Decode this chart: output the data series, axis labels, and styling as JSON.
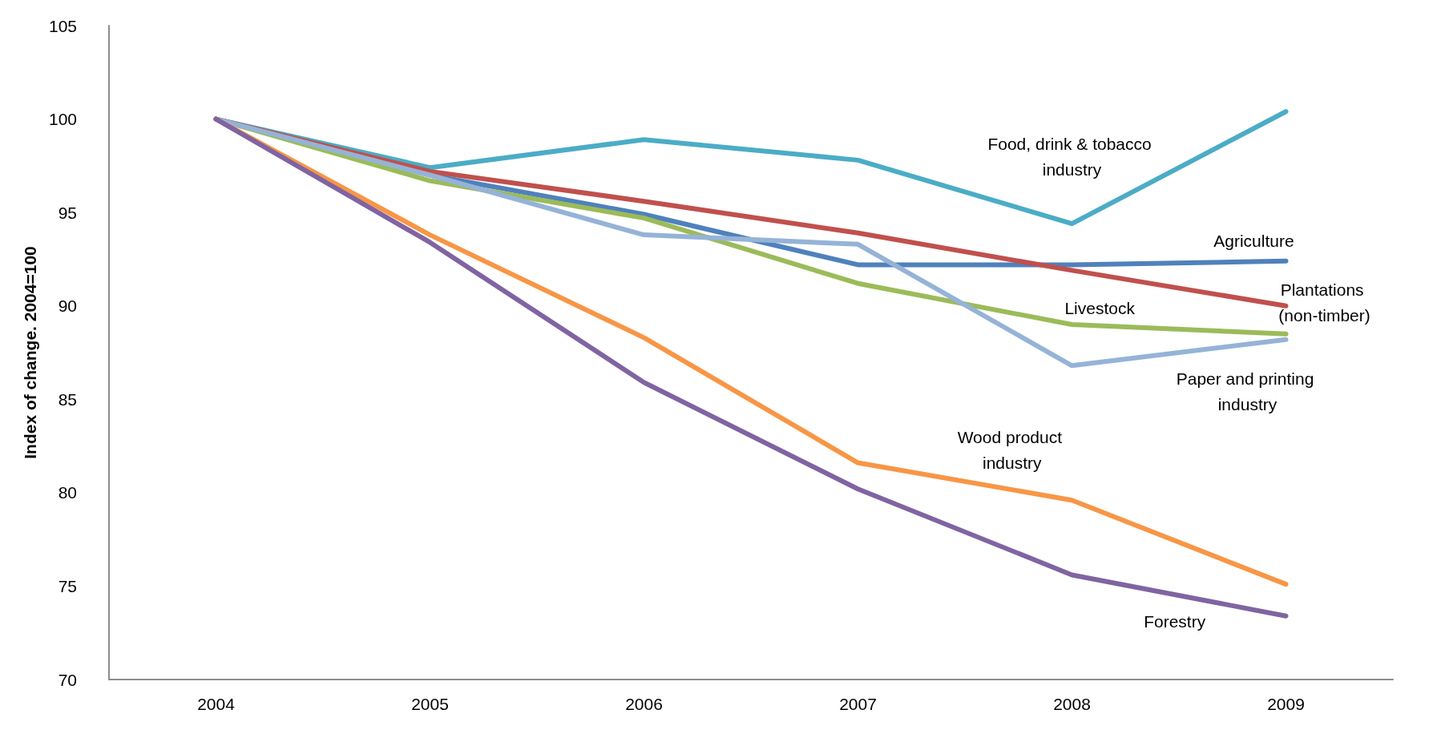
{
  "chart_data": {
    "type": "line",
    "ylabel": "Index of change. 2004=100",
    "categories": [
      "2004",
      "2005",
      "2006",
      "2007",
      "2008",
      "2009"
    ],
    "ylim": [
      70,
      105
    ],
    "yticks": [
      70,
      75,
      80,
      85,
      90,
      95,
      100,
      105
    ],
    "grid": false,
    "legend": false,
    "marker": "none",
    "line_style": "solid",
    "series": [
      {
        "name": "Food, drink & tobacco industry",
        "color": "#4bacc6",
        "values": [
          100,
          97.4,
          98.9,
          97.8,
          94.4,
          100.4
        ]
      },
      {
        "name": "Agriculture",
        "color": "#4f81bd",
        "values": [
          100,
          97.0,
          94.9,
          92.2,
          92.2,
          92.4
        ]
      },
      {
        "name": "Plantations (non-timber)",
        "color": "#c0504d",
        "values": [
          100,
          97.2,
          95.6,
          93.9,
          91.9,
          90.0
        ]
      },
      {
        "name": "Livestock",
        "color": "#9bbb59",
        "values": [
          100,
          96.7,
          94.7,
          91.2,
          89.0,
          88.5
        ]
      },
      {
        "name": "Paper and printing industry",
        "color": "#95b3d7",
        "values": [
          100,
          97.0,
          93.8,
          93.3,
          86.8,
          88.2
        ]
      },
      {
        "name": "Wood product industry",
        "color": "#f79646",
        "values": [
          100,
          93.8,
          88.3,
          81.6,
          79.6,
          75.1
        ]
      },
      {
        "name": "Forestry",
        "color": "#8064a2",
        "values": [
          100,
          93.4,
          85.9,
          80.2,
          75.6,
          73.4
        ]
      }
    ]
  }
}
